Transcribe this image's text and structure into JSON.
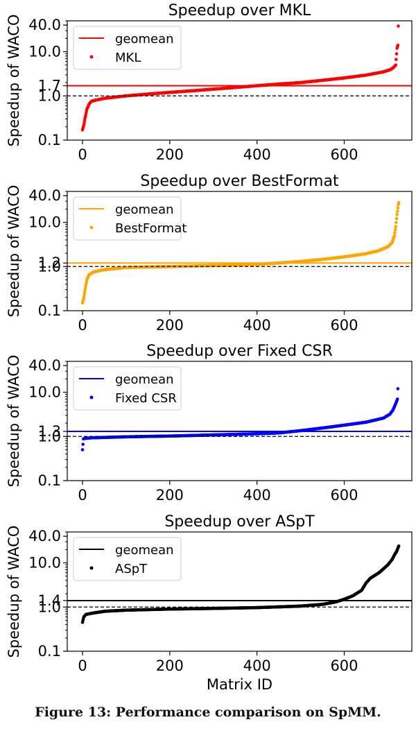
{
  "caption": "Figure 13: Performance comparison on SpMM.",
  "chart_data": [
    {
      "type": "scatter",
      "title": "Speedup over MKL",
      "ylabel": "Speedup of WACO",
      "xlabel": "",
      "yscale": "log",
      "xlim": [
        -35,
        755
      ],
      "ylim": [
        0.1,
        50
      ],
      "xticks": [
        "0",
        "200",
        "400",
        "600"
      ],
      "yticks": [
        "0.1",
        "1.0",
        "1.7",
        "10.0",
        "40.0"
      ],
      "baseline": 1.0,
      "geomean": 1.7,
      "legend": {
        "position": "upper-left",
        "line": "geomean",
        "points": "MKL"
      },
      "color": "#ff0000",
      "curve": [
        [
          0,
          0.17
        ],
        [
          3,
          0.22
        ],
        [
          6,
          0.32
        ],
        [
          10,
          0.5
        ],
        [
          15,
          0.65
        ],
        [
          20,
          0.75
        ],
        [
          30,
          0.8
        ],
        [
          50,
          0.88
        ],
        [
          80,
          0.95
        ],
        [
          100,
          1.0
        ],
        [
          150,
          1.1
        ],
        [
          200,
          1.2
        ],
        [
          250,
          1.3
        ],
        [
          300,
          1.42
        ],
        [
          350,
          1.55
        ],
        [
          400,
          1.7
        ],
        [
          450,
          1.85
        ],
        [
          500,
          2.0
        ],
        [
          550,
          2.25
        ],
        [
          600,
          2.55
        ],
        [
          650,
          2.95
        ],
        [
          690,
          3.5
        ],
        [
          705,
          3.9
        ],
        [
          712,
          4.3
        ],
        [
          718,
          5.0
        ],
        [
          721,
          12.0
        ],
        [
          723,
          14.0
        ],
        [
          724,
          38.0
        ]
      ]
    },
    {
      "type": "scatter",
      "title": "Speedup over BestFormat",
      "ylabel": "Speedup of WACO",
      "xlabel": "",
      "yscale": "log",
      "xlim": [
        -35,
        755
      ],
      "ylim": [
        0.1,
        50
      ],
      "xticks": [
        "0",
        "200",
        "400",
        "600"
      ],
      "yticks": [
        "0.1",
        "1.0",
        "1.2",
        "10.0",
        "40.0"
      ],
      "baseline": 1.0,
      "geomean": 1.2,
      "legend": {
        "position": "upper-left",
        "line": "geomean",
        "points": "BestFormat"
      },
      "color": "#ffa500",
      "curve": [
        [
          0,
          0.15
        ],
        [
          3,
          0.2
        ],
        [
          7,
          0.35
        ],
        [
          10,
          0.5
        ],
        [
          15,
          0.65
        ],
        [
          25,
          0.75
        ],
        [
          50,
          0.85
        ],
        [
          100,
          0.95
        ],
        [
          200,
          1.0
        ],
        [
          300,
          1.05
        ],
        [
          400,
          1.12
        ],
        [
          450,
          1.2
        ],
        [
          500,
          1.3
        ],
        [
          550,
          1.45
        ],
        [
          600,
          1.65
        ],
        [
          650,
          1.95
        ],
        [
          680,
          2.3
        ],
        [
          700,
          2.8
        ],
        [
          710,
          3.5
        ],
        [
          715,
          5.0
        ],
        [
          718,
          8.0
        ],
        [
          721,
          15.0
        ],
        [
          724,
          25.0
        ],
        [
          725,
          28.0
        ]
      ]
    },
    {
      "type": "scatter",
      "title": "Speedup over Fixed CSR",
      "ylabel": "Speedup of WACO",
      "xlabel": "",
      "yscale": "log",
      "xlim": [
        -35,
        755
      ],
      "ylim": [
        0.1,
        50
      ],
      "xticks": [
        "0",
        "200",
        "400",
        "600"
      ],
      "yticks": [
        "0.1",
        "1.0",
        "1.3",
        "10.0",
        "40.0"
      ],
      "baseline": 1.0,
      "geomean": 1.3,
      "legend": {
        "position": "upper-left",
        "line": "geomean",
        "points": "Fixed CSR"
      },
      "color": "#0000ff",
      "curve": [
        [
          0,
          0.5
        ],
        [
          2,
          0.88
        ],
        [
          5,
          0.9
        ],
        [
          20,
          0.93
        ],
        [
          100,
          0.98
        ],
        [
          200,
          1.02
        ],
        [
          300,
          1.08
        ],
        [
          400,
          1.15
        ],
        [
          450,
          1.2
        ],
        [
          500,
          1.35
        ],
        [
          550,
          1.55
        ],
        [
          600,
          1.8
        ],
        [
          650,
          2.1
        ],
        [
          690,
          2.6
        ],
        [
          705,
          3.2
        ],
        [
          712,
          4.0
        ],
        [
          718,
          5.5
        ],
        [
          722,
          7.0
        ],
        [
          723,
          12.0
        ]
      ]
    },
    {
      "type": "scatter",
      "title": "Speedup over ASpT",
      "ylabel": "Speedup of WACO",
      "xlabel": "Matrix ID",
      "yscale": "log",
      "xlim": [
        -35,
        755
      ],
      "ylim": [
        0.1,
        50
      ],
      "xticks": [
        "0",
        "200",
        "400",
        "600"
      ],
      "yticks": [
        "0.1",
        "1.0",
        "1.4",
        "10.0",
        "40.0"
      ],
      "baseline": 1.0,
      "geomean": 1.4,
      "legend": {
        "position": "upper-left",
        "line": "geomean",
        "points": "ASpT"
      },
      "color": "#000000",
      "curve": [
        [
          0,
          0.45
        ],
        [
          1,
          0.5
        ],
        [
          3,
          0.6
        ],
        [
          8,
          0.68
        ],
        [
          20,
          0.72
        ],
        [
          50,
          0.8
        ],
        [
          100,
          0.85
        ],
        [
          200,
          0.9
        ],
        [
          300,
          0.93
        ],
        [
          400,
          0.97
        ],
        [
          500,
          1.05
        ],
        [
          550,
          1.15
        ],
        [
          580,
          1.3
        ],
        [
          600,
          1.5
        ],
        [
          620,
          1.8
        ],
        [
          640,
          2.4
        ],
        [
          650,
          3.5
        ],
        [
          660,
          4.5
        ],
        [
          680,
          6.0
        ],
        [
          700,
          9.0
        ],
        [
          710,
          12.0
        ],
        [
          715,
          15.0
        ],
        [
          720,
          18.0
        ],
        [
          725,
          24.0
        ]
      ]
    }
  ]
}
